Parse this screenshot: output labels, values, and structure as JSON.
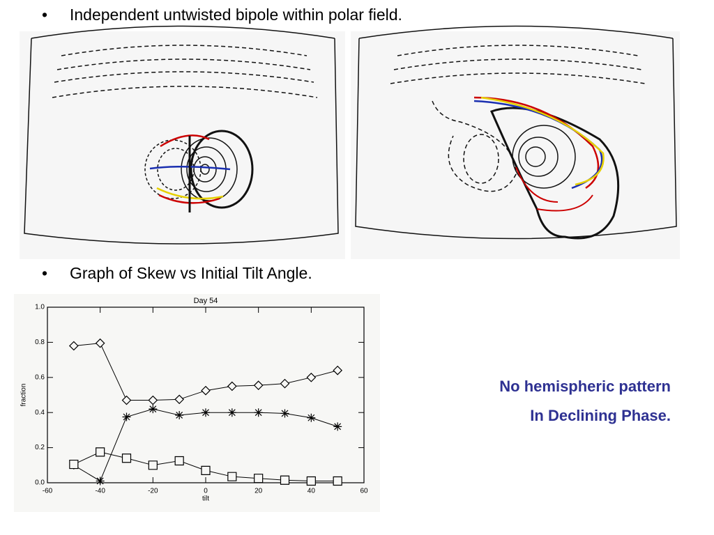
{
  "bullets": [
    "Independent untwisted bipole within polar field.",
    "Graph of Skew vs Initial Tilt Angle."
  ],
  "note": {
    "lines": [
      "No hemispheric pattern",
      "In Declining Phase."
    ]
  },
  "chart_data": {
    "type": "line",
    "title": "Day 54",
    "x_label": "tilt",
    "y_label": "fraction",
    "x": [
      -50,
      -40,
      -30,
      -20,
      -10,
      0,
      10,
      20,
      30,
      40,
      50
    ],
    "series": [
      {
        "marker": "diamond",
        "color": "#000000",
        "values": [
          0.78,
          0.795,
          0.47,
          0.47,
          0.475,
          0.525,
          0.55,
          0.555,
          0.565,
          0.6,
          0.64
        ]
      },
      {
        "marker": "asterisk",
        "color": "#000000",
        "values": [
          0.1,
          0.01,
          0.375,
          0.42,
          0.385,
          0.4,
          0.4,
          0.4,
          0.395,
          0.37,
          0.32
        ]
      },
      {
        "marker": "square",
        "color": "#000000",
        "values": [
          0.105,
          0.175,
          0.14,
          0.1,
          0.125,
          0.07,
          0.035,
          0.025,
          0.015,
          0.01,
          0.01
        ]
      }
    ],
    "xlim": [
      -60,
      60
    ],
    "xticks": [
      -60,
      -40,
      -20,
      0,
      20,
      40,
      60
    ],
    "ylim": [
      0,
      1
    ],
    "yticks": [
      {
        "value": 0,
        "label": "0.0"
      },
      0.2,
      0.4,
      0.6,
      0.8,
      {
        "value": 1,
        "label": "1.0"
      }
    ]
  }
}
